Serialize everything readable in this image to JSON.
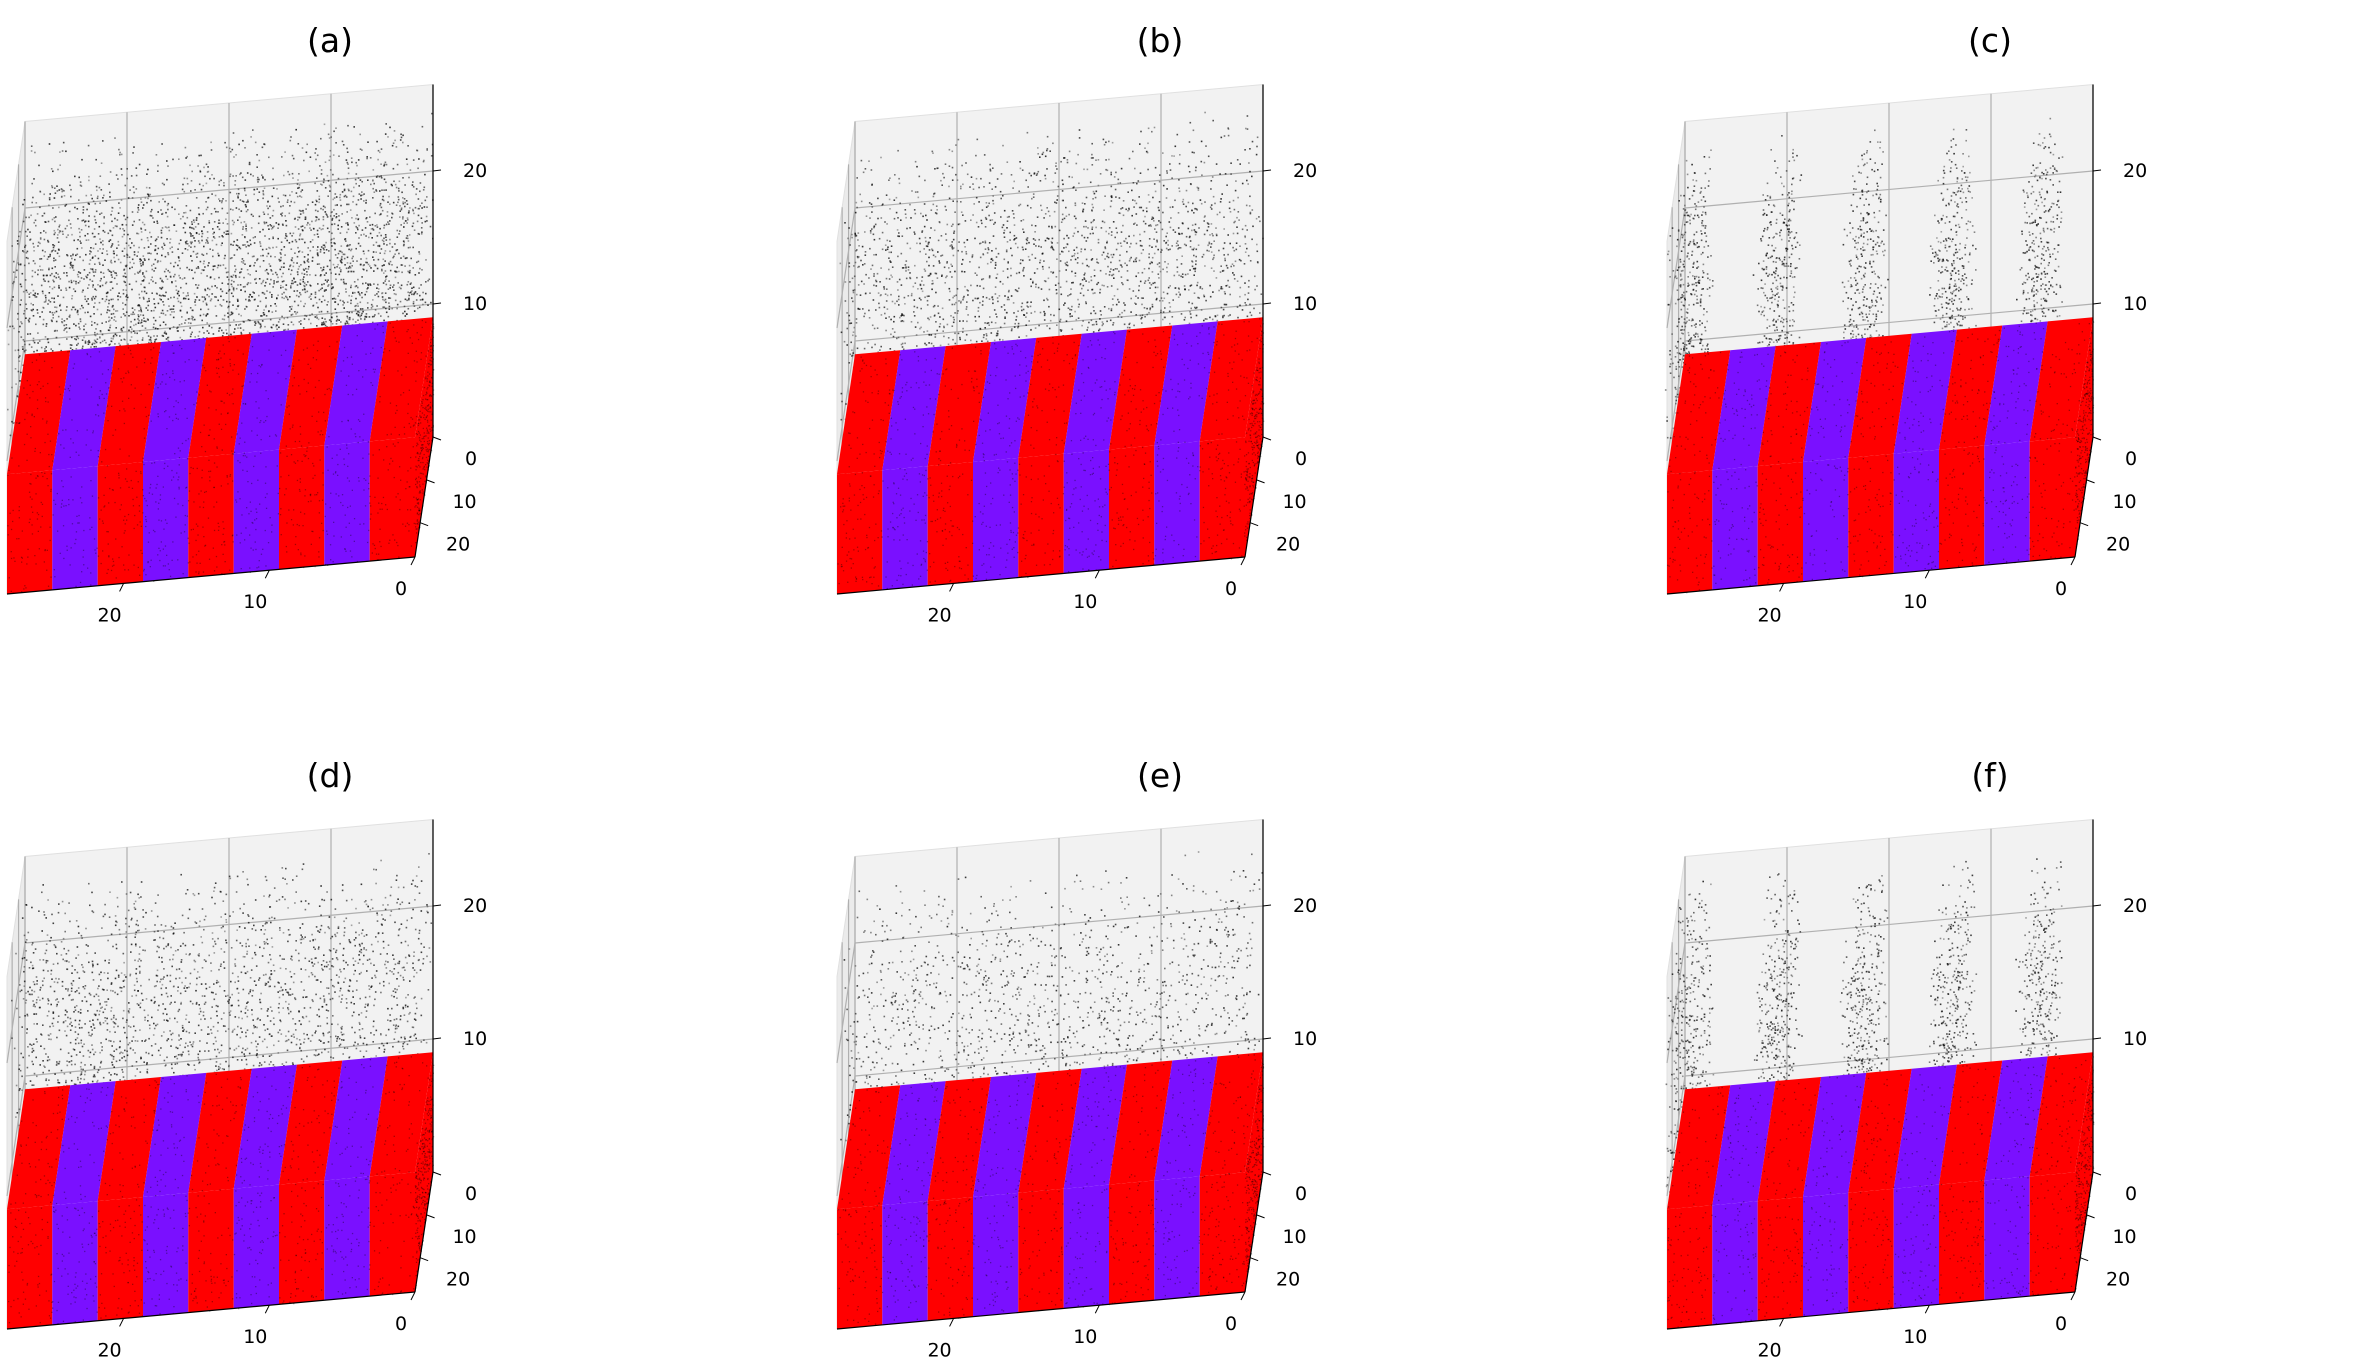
{
  "colors": {
    "red_stripe": "#ff0000",
    "purple_stripe": "#7a10ff",
    "atoms": "#111111",
    "pane": "#f2f2f2",
    "grid": "#b0b0b0",
    "axis": "#000000"
  },
  "chart_data": [
    {
      "type": "scatter3d",
      "title": "(a)",
      "xlim": [
        0,
        28
      ],
      "ylim": [
        0,
        28
      ],
      "zlim": [
        0,
        26
      ],
      "xticks": [
        "0",
        "10",
        "20"
      ],
      "yticks": [
        "0",
        "10",
        "20"
      ],
      "zticks": [
        "10",
        "20"
      ],
      "slab": {
        "z_range": [
          0,
          9
        ],
        "stripe_count": 9,
        "stripe_pattern": [
          "red",
          "purple",
          "red",
          "purple",
          "red",
          "purple",
          "red",
          "purple",
          "red"
        ]
      },
      "gas_density": "high",
      "grid": true
    },
    {
      "type": "scatter3d",
      "title": "(b)",
      "xlim": [
        0,
        28
      ],
      "ylim": [
        0,
        28
      ],
      "zlim": [
        0,
        26
      ],
      "xticks": [
        "0",
        "10",
        "20"
      ],
      "yticks": [
        "0",
        "10",
        "20"
      ],
      "zticks": [
        "10",
        "20"
      ],
      "slab": {
        "z_range": [
          0,
          9
        ],
        "stripe_count": 9,
        "stripe_pattern": [
          "red",
          "purple",
          "red",
          "purple",
          "red",
          "purple",
          "red",
          "purple",
          "red"
        ]
      },
      "gas_density": "medium",
      "grid": true
    },
    {
      "type": "scatter3d",
      "title": "(c)",
      "xlim": [
        0,
        28
      ],
      "ylim": [
        0,
        28
      ],
      "zlim": [
        0,
        26
      ],
      "xticks": [
        "0",
        "10",
        "20"
      ],
      "yticks": [
        "0",
        "10",
        "20"
      ],
      "zticks": [
        "10",
        "20"
      ],
      "slab": {
        "z_range": [
          0,
          9
        ],
        "stripe_count": 9,
        "stripe_pattern": [
          "red",
          "purple",
          "red",
          "purple",
          "red",
          "purple",
          "red",
          "purple",
          "red"
        ]
      },
      "gas_density": "low-banded",
      "grid": true
    },
    {
      "type": "scatter3d",
      "title": "(d)",
      "xlim": [
        0,
        28
      ],
      "ylim": [
        0,
        28
      ],
      "zlim": [
        0,
        26
      ],
      "xticks": [
        "0",
        "10",
        "20"
      ],
      "yticks": [
        "0",
        "10",
        "20"
      ],
      "zticks": [
        "10",
        "20"
      ],
      "slab": {
        "z_range": [
          0,
          9
        ],
        "stripe_count": 9,
        "stripe_pattern": [
          "red",
          "purple",
          "red",
          "purple",
          "red",
          "purple",
          "red",
          "purple",
          "red"
        ]
      },
      "gas_density": "medium",
      "grid": true
    },
    {
      "type": "scatter3d",
      "title": "(e)",
      "xlim": [
        0,
        28
      ],
      "ylim": [
        0,
        28
      ],
      "zlim": [
        0,
        26
      ],
      "xticks": [
        "0",
        "10",
        "20"
      ],
      "yticks": [
        "0",
        "10",
        "20"
      ],
      "zticks": [
        "10",
        "20"
      ],
      "slab": {
        "z_range": [
          0,
          9
        ],
        "stripe_count": 9,
        "stripe_pattern": [
          "red",
          "purple",
          "red",
          "purple",
          "red",
          "purple",
          "red",
          "purple",
          "red"
        ]
      },
      "gas_density": "low",
      "grid": true
    },
    {
      "type": "scatter3d",
      "title": "(f)",
      "xlim": [
        0,
        28
      ],
      "ylim": [
        0,
        28
      ],
      "zlim": [
        0,
        26
      ],
      "xticks": [
        "0",
        "10",
        "20"
      ],
      "yticks": [
        "0",
        "10",
        "20"
      ],
      "zticks": [
        "10",
        "20"
      ],
      "slab": {
        "z_range": [
          0,
          9
        ],
        "stripe_count": 9,
        "stripe_pattern": [
          "red",
          "purple",
          "red",
          "purple",
          "red",
          "purple",
          "red",
          "purple",
          "red"
        ]
      },
      "gas_density": "low-banded",
      "grid": true
    }
  ]
}
